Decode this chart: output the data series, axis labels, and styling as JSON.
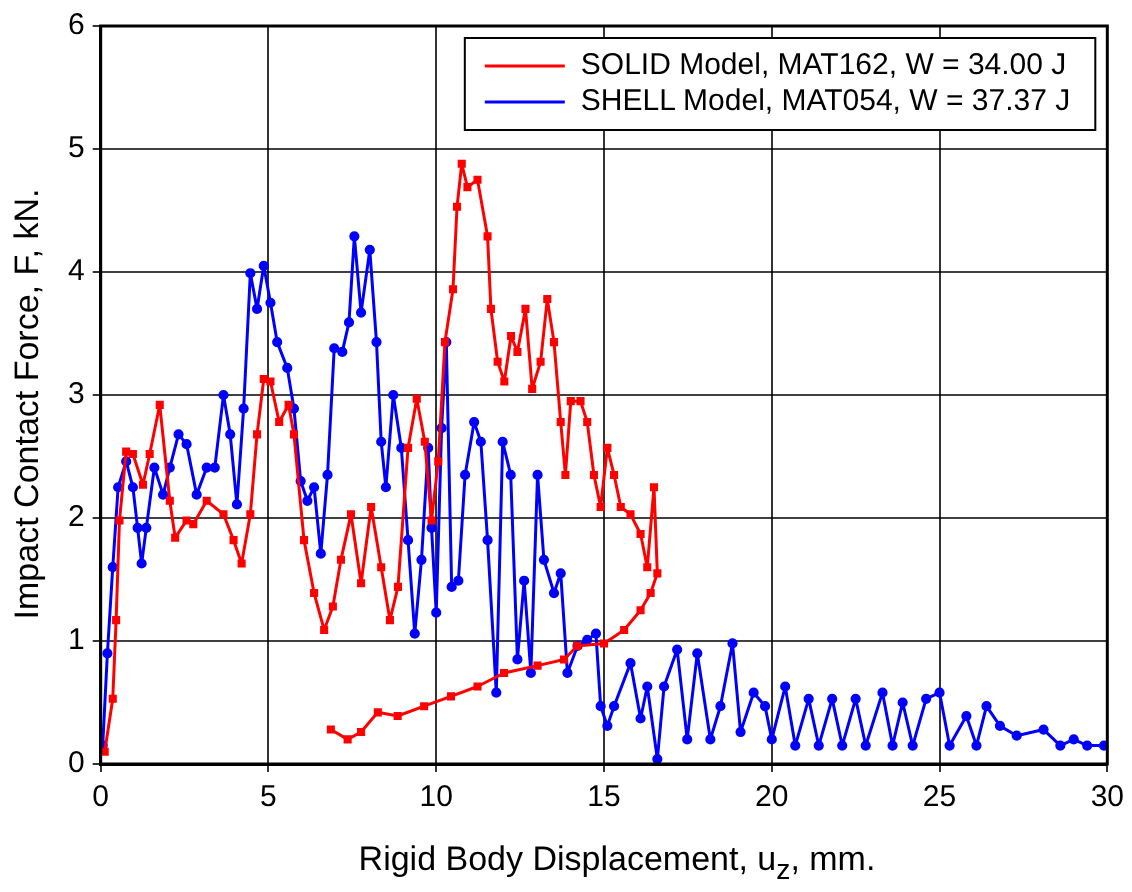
{
  "chart_data": {
    "type": "line",
    "xlabel": "Rigid Body Displacement, u$_{z}$, mm.",
    "ylabel": "Impact Contact Force, F, kN.",
    "xlim": [
      0,
      30
    ],
    "xticks": [
      0,
      5,
      10,
      15,
      20,
      25,
      30
    ],
    "ylim": [
      0,
      6
    ],
    "yticks": [
      0,
      1,
      2,
      3,
      4,
      5,
      6
    ],
    "grid": true,
    "legend": "top right",
    "line_style": "solid",
    "series": [
      {
        "name": "SOLID Model, MAT162, W = 34.00 J",
        "color": "#ff0000",
        "marker": "square",
        "x": [
          0.12,
          0.36,
          0.46,
          0.56,
          0.76,
          0.96,
          1.26,
          1.46,
          1.76,
          2.06,
          2.22,
          2.56,
          2.76,
          3.16,
          3.66,
          3.96,
          4.2,
          4.46,
          4.66,
          4.86,
          5.06,
          5.32,
          5.6,
          5.76,
          6.06,
          6.36,
          6.66,
          6.92,
          7.16,
          7.46,
          7.76,
          8.06,
          8.36,
          8.62,
          8.86,
          9.16,
          9.42,
          9.66,
          9.86,
          10.06,
          10.26,
          10.5,
          10.62,
          10.76,
          10.93,
          11.23,
          11.53,
          11.63,
          11.83,
          12.03,
          12.23,
          12.42,
          12.66,
          12.86,
          13.11,
          13.31,
          13.51,
          13.71,
          13.85,
          14.01,
          14.3,
          14.5,
          14.7,
          14.9,
          15.1,
          15.3,
          15.5,
          15.79,
          16.09,
          16.29,
          16.49,
          16.59,
          16.39,
          16.09,
          15.6,
          15,
          14.2,
          13.81,
          13.02,
          12.02,
          11.23,
          10.44,
          9.64,
          8.85,
          8.26,
          7.76,
          7.36,
          6.86
        ],
        "values": [
          0.1,
          0.53,
          1.17,
          1.98,
          2.54,
          2.52,
          2.27,
          2.52,
          2.92,
          2.14,
          1.84,
          1.98,
          1.95,
          2.14,
          2.03,
          1.82,
          1.63,
          2.03,
          2.68,
          3.13,
          3.11,
          2.78,
          2.92,
          2.68,
          1.82,
          1.39,
          1.09,
          1.28,
          1.66,
          2.03,
          1.47,
          2.09,
          1.6,
          1.17,
          1.44,
          2.57,
          2.97,
          2.62,
          1.98,
          2.46,
          3.43,
          3.86,
          4.53,
          4.88,
          4.69,
          4.75,
          4.29,
          3.7,
          3.27,
          3.11,
          3.48,
          3.35,
          3.7,
          3.05,
          3.27,
          3.78,
          3.43,
          2.78,
          2.35,
          2.95,
          2.95,
          2.78,
          2.35,
          2.09,
          2.57,
          2.35,
          2.09,
          2.03,
          1.87,
          1.6,
          2.25,
          1.55,
          1.39,
          1.25,
          1.09,
          0.98,
          0.96,
          0.85,
          0.8,
          0.74,
          0.63,
          0.55,
          0.47,
          0.39,
          0.42,
          0.26,
          0.2,
          0.28
        ]
      },
      {
        "name": "SHELL Model, MAT054, W = 37.37 J",
        "color": "#0000ff",
        "marker": "circle",
        "x": [
          0.06,
          0.2,
          0.36,
          0.52,
          0.76,
          0.96,
          1.1,
          1.22,
          1.36,
          1.6,
          1.86,
          2.06,
          2.32,
          2.56,
          2.86,
          3.16,
          3.4,
          3.66,
          3.86,
          4.06,
          4.26,
          4.46,
          4.66,
          4.86,
          5.06,
          5.26,
          5.56,
          5.76,
          5.96,
          6.16,
          6.36,
          6.56,
          6.76,
          6.96,
          7.2,
          7.4,
          7.56,
          7.76,
          8.02,
          8.22,
          8.36,
          8.5,
          8.72,
          8.96,
          9.16,
          9.36,
          9.56,
          9.76,
          9.86,
          10.0,
          10.16,
          10.3,
          10.46,
          10.66,
          10.86,
          11.13,
          11.33,
          11.53,
          11.79,
          11.98,
          12.22,
          12.42,
          12.62,
          12.82,
          13.02,
          13.21,
          13.51,
          13.71,
          13.91,
          14.21,
          14.5,
          14.76,
          14.9,
          15.1,
          15.3,
          15.79,
          16.09,
          16.29,
          16.59,
          16.79,
          17.18,
          17.48,
          17.78,
          18.17,
          18.47,
          18.83,
          19.07,
          19.46,
          19.8,
          20,
          20.4,
          20.7,
          21.1,
          21.4,
          21.8,
          22.1,
          22.5,
          22.8,
          23.3,
          23.6,
          23.9,
          24.2,
          24.6,
          25,
          25.3,
          25.8,
          26.1,
          26.4,
          26.8,
          27.3,
          28.1,
          28.6,
          29,
          29.4,
          29.9
        ],
        "values": [
          0.15,
          0.9,
          1.6,
          2.25,
          2.46,
          2.25,
          1.92,
          1.63,
          1.92,
          2.41,
          2.19,
          2.41,
          2.68,
          2.6,
          2.19,
          2.41,
          2.41,
          3.0,
          2.68,
          2.11,
          2.89,
          3.99,
          3.7,
          4.05,
          3.75,
          3.43,
          3.22,
          2.89,
          2.3,
          2.14,
          2.25,
          1.71,
          2.35,
          3.38,
          3.35,
          3.59,
          4.29,
          3.67,
          4.18,
          3.43,
          2.62,
          2.25,
          3.0,
          2.57,
          1.82,
          1.06,
          1.66,
          2.57,
          1.92,
          1.23,
          2.73,
          3.43,
          1.44,
          1.49,
          2.35,
          2.78,
          2.62,
          1.82,
          0.58,
          2.62,
          2.35,
          0.85,
          1.49,
          0.74,
          2.35,
          1.66,
          1.39,
          1.55,
          0.74,
          0.96,
          1.01,
          1.06,
          0.47,
          0.31,
          0.47,
          0.82,
          0.37,
          0.63,
          0.04,
          0.63,
          0.93,
          0.2,
          0.9,
          0.2,
          0.47,
          0.98,
          0.26,
          0.58,
          0.47,
          0.2,
          0.63,
          0.15,
          0.53,
          0.15,
          0.53,
          0.15,
          0.53,
          0.15,
          0.58,
          0.15,
          0.5,
          0.15,
          0.53,
          0.58,
          0.15,
          0.39,
          0.15,
          0.47,
          0.31,
          0.23,
          0.28,
          0.15,
          0.2,
          0.15,
          0.15
        ]
      }
    ]
  }
}
